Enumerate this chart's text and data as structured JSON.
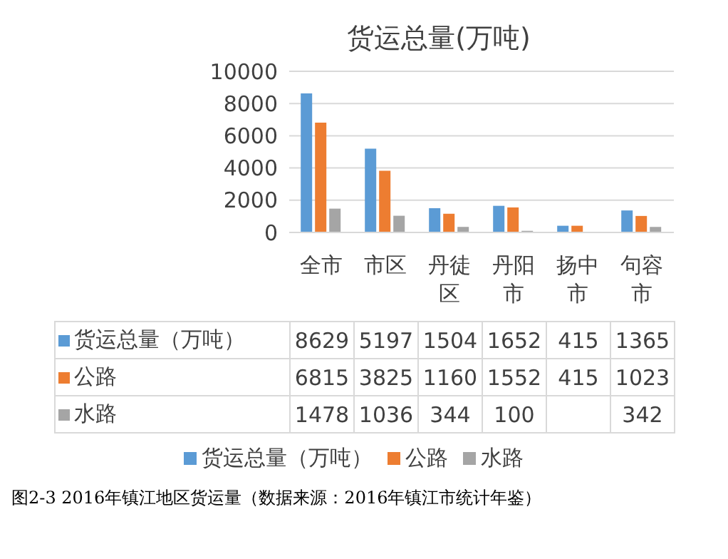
{
  "chart_data": {
    "type": "bar",
    "title": "货运总量(万吨)",
    "categories": [
      "全市",
      "市区",
      "丹徒区",
      "丹阳市",
      "扬中市",
      "句容市"
    ],
    "series": [
      {
        "name": "货运总量（万吨）",
        "color": "#5b9bd5",
        "values": [
          8629,
          5197,
          1504,
          1652,
          415,
          1365
        ]
      },
      {
        "name": "公路",
        "color": "#ed7d31",
        "values": [
          6815,
          3825,
          1160,
          1552,
          415,
          1023
        ]
      },
      {
        "name": "水路",
        "color": "#a5a5a5",
        "values": [
          1478,
          1036,
          344,
          100,
          null,
          342
        ]
      }
    ],
    "ylim": [
      0,
      10000
    ],
    "yticks": [
      0,
      2000,
      4000,
      6000,
      8000,
      10000
    ],
    "grid": "y",
    "legend": "bottom",
    "data_labels": true,
    "annotations": [
      "图2-3   2016年镇江地区货运量（数据来源：2016年镇江市统计年鉴）"
    ]
  }
}
